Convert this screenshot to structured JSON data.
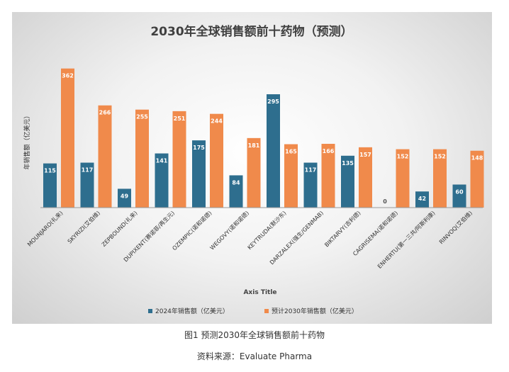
{
  "chart_data": {
    "type": "bar",
    "title": "2030年全球销售额前十药物（预测）",
    "ylabel": "年销售额（亿美元）",
    "xlabel": "Axis Title",
    "ylim": [
      0,
      380
    ],
    "legend_position": "bottom",
    "categories": [
      "MOUNJARO(礼来)",
      "SKYRIZI(艾伯维)",
      "ZEPBOUND(礼来)",
      "DUPIXENT(赛诺菲/再生元)",
      "OZEMPIC(诺和诺德)",
      "WEGOVY(诺和诺德)",
      "KEYTRUDA(默沙东)",
      "DARZALEX(强生/GENMAB)",
      "BIKTARVY(吉利德)",
      "CAGRISEMA(诺和诺德)",
      "ENHERTU(第一三共/阿斯利康)",
      "RINVOQ(艾伯维)"
    ],
    "series": [
      {
        "name": "2024年销售额（亿美元）",
        "color": "#2e6e8e",
        "values": [
          115,
          117,
          49,
          141,
          175,
          84,
          295,
          117,
          135,
          0,
          42,
          60
        ]
      },
      {
        "name": "预计2030年销售额（亿美元）",
        "color": "#f08a4b",
        "values": [
          362,
          266,
          255,
          251,
          244,
          181,
          165,
          166,
          157,
          152,
          152,
          148
        ]
      }
    ]
  },
  "captions": {
    "figure": "图1 预测2030年全球销售额前十药物",
    "source": "资料来源：Evaluate Pharma"
  }
}
